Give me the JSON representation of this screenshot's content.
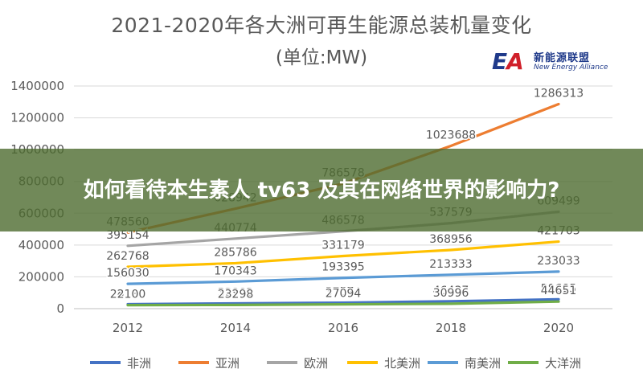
{
  "chart_data": {
    "type": "line",
    "title": "2021-2020年各大洲可再生能源总装机量变化",
    "subtitle": "(单位:MW)",
    "xlabel": "",
    "ylabel": "",
    "x": [
      "2012",
      "2014",
      "2016",
      "2018",
      "2020"
    ],
    "y_ticks": [
      "0",
      "200000",
      "400000",
      "600000",
      "800000",
      "1000000",
      "1200000",
      "1400000"
    ],
    "ylim": [
      0,
      1400000
    ],
    "grid": true,
    "legend_position": "bottom",
    "series": [
      {
        "name": "非洲",
        "color": "#4472c4",
        "values": [
          28190,
          32902,
          37574,
          46437,
          58685
        ]
      },
      {
        "name": "亚洲",
        "color": "#ed7d31",
        "values": [
          478560,
          628942,
          786578,
          1023688,
          1286313
        ]
      },
      {
        "name": "欧洲",
        "color": "#a5a5a5",
        "values": [
          395154,
          440774,
          486578,
          537579,
          609499
        ]
      },
      {
        "name": "北美洲",
        "color": "#ffc000",
        "values": [
          262768,
          285786,
          331179,
          368956,
          421703
        ]
      },
      {
        "name": "南美洲",
        "color": "#5b9bd5",
        "values": [
          156030,
          170343,
          193395,
          213333,
          233033
        ]
      },
      {
        "name": "大洋洲",
        "color": "#70ad47",
        "values": [
          22100,
          23298,
          27094,
          30996,
          44651
        ]
      }
    ]
  },
  "logo": {
    "mark_e": "E",
    "mark_a": "A",
    "name_cn": "新能源联盟",
    "name_en": "New Energy Alliance"
  },
  "banner": {
    "text": "如何看待本生素人 tv63 及其在网络世界的影响力?"
  }
}
